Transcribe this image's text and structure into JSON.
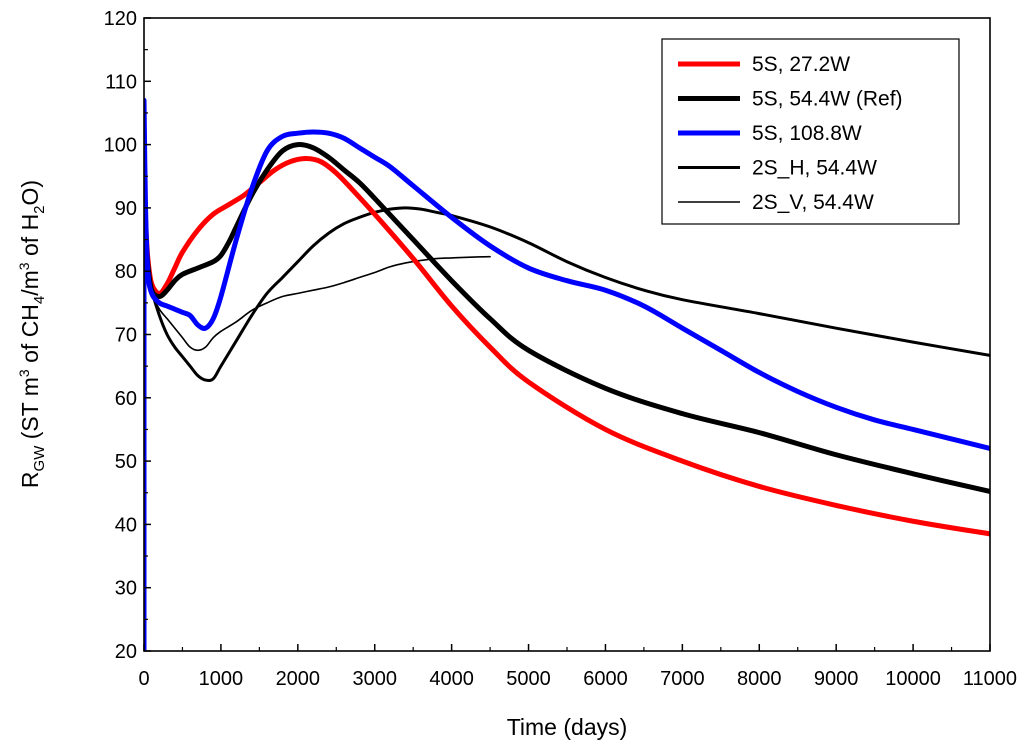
{
  "chart_data": {
    "type": "line",
    "title": "",
    "xlabel": "Time (days)",
    "ylabel": {
      "parts": [
        "R",
        "GW",
        " (ST m",
        "3",
        " of CH",
        "4",
        "/m",
        "3",
        " of H",
        "2",
        "O)"
      ]
    },
    "xlim": [
      0,
      11000
    ],
    "ylim": [
      20,
      120
    ],
    "xticks": [
      0,
      1000,
      2000,
      3000,
      4000,
      5000,
      6000,
      7000,
      8000,
      9000,
      10000,
      11000
    ],
    "yticks": [
      20,
      30,
      40,
      50,
      60,
      70,
      80,
      90,
      100,
      110,
      120
    ],
    "grid": false,
    "legend_position": "top-right",
    "series": [
      {
        "name": "5S, 27.2W",
        "color": "#ff0000",
        "width": 5,
        "x": [
          0,
          20,
          50,
          100,
          200,
          300,
          400,
          500,
          700,
          900,
          1100,
          1300,
          1500,
          1700,
          1900,
          2100,
          2300,
          2500,
          2700,
          3000,
          3500,
          4000,
          4500,
          5000,
          6000,
          7000,
          8000,
          9000,
          10000,
          11000
        ],
        "values": [
          95,
          88,
          82,
          78,
          76.5,
          78,
          80.5,
          83,
          86.5,
          89,
          90.5,
          92,
          94,
          96,
          97.3,
          97.8,
          97.3,
          95.5,
          93,
          89,
          82,
          74.5,
          68,
          62.5,
          55,
          50,
          46,
          43,
          40.5,
          38.5
        ]
      },
      {
        "name": "5S, 54.4W (Ref)",
        "color": "#000000",
        "width": 5,
        "x": [
          0,
          20,
          50,
          100,
          200,
          300,
          400,
          500,
          700,
          900,
          1000,
          1100,
          1200,
          1400,
          1600,
          1800,
          2000,
          2200,
          2400,
          2600,
          2800,
          3000,
          3500,
          4000,
          4500,
          5000,
          6000,
          7000,
          8000,
          9000,
          10000,
          11000
        ],
        "values": [
          94,
          87,
          81,
          77,
          76,
          77,
          78.5,
          79.5,
          80.5,
          81.5,
          82.5,
          84.5,
          87,
          92,
          96,
          99,
          100,
          99.5,
          98,
          96,
          94,
          91.5,
          85,
          78.5,
          72.5,
          67.5,
          61.5,
          57.5,
          54.5,
          51,
          48,
          45.2
        ]
      },
      {
        "name": "5S, 108.8W",
        "color": "#0000ff",
        "width": 5,
        "x": [
          0,
          20,
          50,
          100,
          200,
          300,
          400,
          500,
          600,
          700,
          800,
          900,
          1000,
          1200,
          1400,
          1600,
          1800,
          2000,
          2200,
          2400,
          2600,
          2800,
          3000,
          3200,
          3500,
          4000,
          4500,
          5000,
          5500,
          6000,
          6500,
          7000,
          7500,
          8000,
          8500,
          9000,
          9500,
          10000,
          10500,
          11000
        ],
        "values": [
          107,
          90,
          80,
          76.5,
          75,
          74.5,
          74,
          73.5,
          73,
          71.5,
          71,
          72.5,
          76,
          85,
          93,
          99,
          101.3,
          101.8,
          102,
          101.8,
          101,
          99.5,
          98,
          96.5,
          93.5,
          88.5,
          84,
          80.5,
          78.5,
          77,
          74.5,
          71,
          67.5,
          64,
          61,
          58.5,
          56.5,
          55,
          53.5,
          52
        ]
      },
      {
        "name": "2S_H, 54.4W",
        "color": "#000000",
        "width": 3,
        "x": [
          0,
          20,
          50,
          100,
          200,
          300,
          400,
          500,
          600,
          700,
          800,
          900,
          1000,
          1200,
          1400,
          1600,
          1800,
          2000,
          2200,
          2400,
          2600,
          2800,
          3000,
          3200,
          3400,
          3600,
          3800,
          4000,
          4500,
          5000,
          5500,
          6000,
          6500,
          7000,
          8000,
          9000,
          10000,
          11000
        ],
        "values": [
          95,
          85,
          80,
          77,
          73,
          70,
          68,
          66.5,
          65,
          63.5,
          62.8,
          63,
          65,
          69,
          73,
          76.5,
          79,
          81.5,
          84,
          86,
          87.5,
          88.5,
          89.3,
          89.8,
          90,
          89.8,
          89.3,
          88.8,
          87,
          84.5,
          81.5,
          79,
          77,
          75.5,
          73.3,
          71,
          68.8,
          66.7
        ]
      },
      {
        "name": "2S_V, 54.4W",
        "color": "#000000",
        "width": 1.6,
        "x": [
          0,
          20,
          50,
          100,
          200,
          300,
          400,
          500,
          600,
          700,
          800,
          900,
          1000,
          1200,
          1400,
          1600,
          1800,
          2000,
          2200,
          2400,
          2600,
          2800,
          3000,
          3200,
          3400,
          3600,
          3800,
          4000,
          4200,
          4500
        ],
        "values": [
          93,
          86,
          80,
          76.5,
          74,
          72.5,
          71,
          69.5,
          68,
          67.5,
          68,
          69.5,
          70.5,
          72,
          73.8,
          75,
          76,
          76.5,
          77,
          77.5,
          78.2,
          79,
          79.8,
          80.7,
          81.3,
          81.7,
          82,
          82.1,
          82.2,
          82.3
        ]
      }
    ]
  }
}
